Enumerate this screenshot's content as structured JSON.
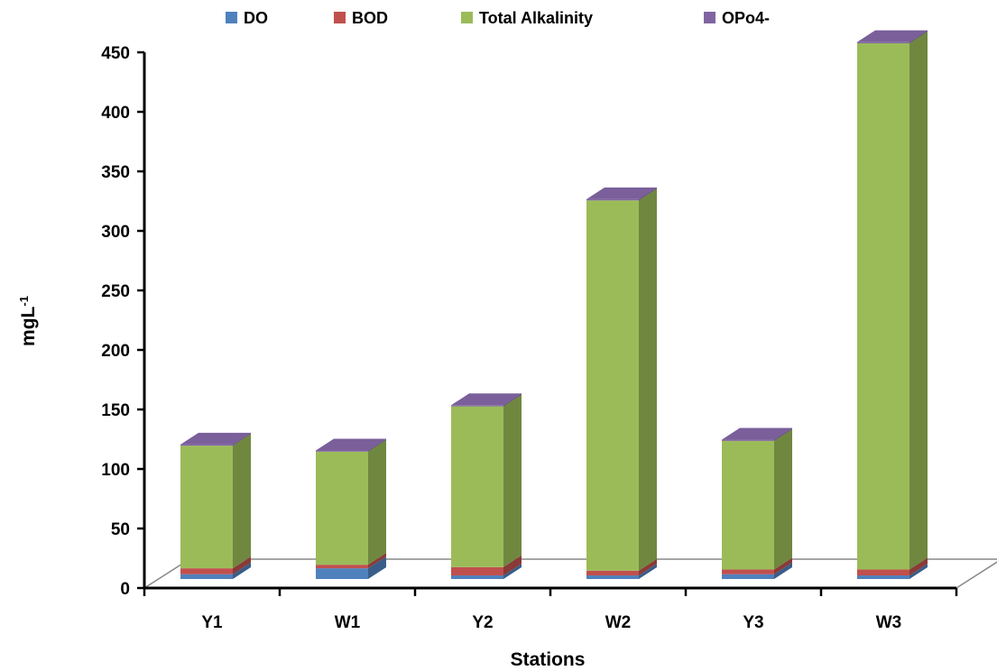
{
  "chart_data": {
    "type": "bar",
    "stacked": true,
    "style": "3d",
    "categories": [
      "Y1",
      "W1",
      "Y2",
      "W2",
      "Y3",
      "W3"
    ],
    "series": [
      {
        "name": "DO",
        "color": "#4F81BD",
        "values": [
          4,
          9,
          3,
          3,
          4,
          3
        ]
      },
      {
        "name": "BOD",
        "color": "#C0504D",
        "values": [
          5,
          3,
          7,
          4,
          4,
          5
        ]
      },
      {
        "name": "Total Alkalinity",
        "color": "#9BBB59",
        "values": [
          103,
          95,
          135,
          311,
          108,
          442
        ]
      },
      {
        "name": "OPo4-",
        "color": "#8064A2",
        "values": [
          1,
          1,
          1,
          1,
          1,
          1
        ]
      }
    ],
    "xlabel": "Stations",
    "ylabel": "mgL-1",
    "ylim": [
      0,
      450
    ],
    "yticks": [
      0,
      50,
      100,
      150,
      200,
      250,
      300,
      350,
      400,
      450
    ],
    "grid": false,
    "legend_position": "top"
  }
}
